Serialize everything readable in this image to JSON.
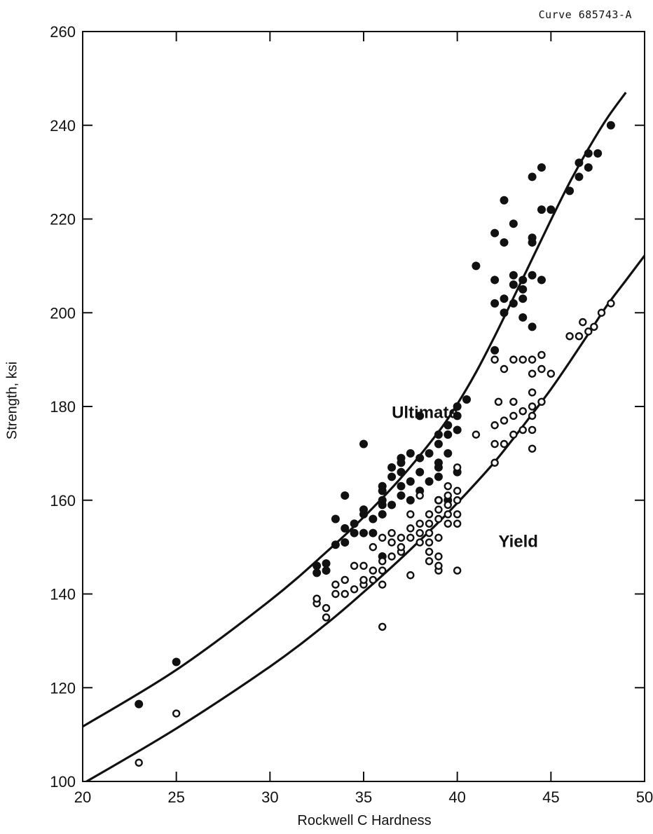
{
  "curve_id": "Curve 685743-A",
  "chart_data": {
    "type": "scatter",
    "title": "",
    "xlabel": "Rockwell C Hardness",
    "ylabel": "Strength, ksi",
    "xlim": [
      20,
      50
    ],
    "ylim": [
      100,
      260
    ],
    "xticks": [
      20,
      25,
      30,
      35,
      40,
      45,
      50
    ],
    "yticks": [
      100,
      120,
      140,
      160,
      180,
      200,
      220,
      240,
      260
    ],
    "grid": false,
    "annotations": [
      {
        "text": "Ultimate",
        "x": 36.5,
        "y": 177.5
      },
      {
        "text": "Yield",
        "x": 42.2,
        "y": 150
      }
    ],
    "series": [
      {
        "name": "Ultimate",
        "marker": "filled-circle",
        "points": [
          [
            23,
            116.5
          ],
          [
            25,
            125.5
          ],
          [
            32.5,
            144.5
          ],
          [
            32.5,
            146
          ],
          [
            33,
            145
          ],
          [
            33,
            146.5
          ],
          [
            33.5,
            150.5
          ],
          [
            33.5,
            156
          ],
          [
            34,
            151
          ],
          [
            34,
            161
          ],
          [
            34,
            154
          ],
          [
            34.5,
            153
          ],
          [
            34.5,
            155
          ],
          [
            35,
            157
          ],
          [
            35,
            158
          ],
          [
            35,
            153
          ],
          [
            35,
            172
          ],
          [
            35.5,
            153
          ],
          [
            35.5,
            156
          ],
          [
            36,
            162
          ],
          [
            36,
            163
          ],
          [
            36,
            157
          ],
          [
            36,
            159
          ],
          [
            36,
            160
          ],
          [
            36,
            148
          ],
          [
            36.5,
            165
          ],
          [
            36.5,
            167
          ],
          [
            36.5,
            159
          ],
          [
            37,
            168
          ],
          [
            37,
            169
          ],
          [
            37,
            166
          ],
          [
            37,
            161
          ],
          [
            37,
            163
          ],
          [
            37.5,
            170
          ],
          [
            37.5,
            164
          ],
          [
            37.5,
            160
          ],
          [
            38,
            178
          ],
          [
            38,
            169
          ],
          [
            38,
            166
          ],
          [
            38,
            162
          ],
          [
            38.5,
            170
          ],
          [
            38.5,
            164
          ],
          [
            39,
            174
          ],
          [
            39,
            172
          ],
          [
            39,
            168
          ],
          [
            39,
            167
          ],
          [
            39,
            165
          ],
          [
            39,
            160
          ],
          [
            39.5,
            176
          ],
          [
            39.5,
            174
          ],
          [
            39.5,
            170
          ],
          [
            39.5,
            160
          ],
          [
            40,
            180
          ],
          [
            40,
            178
          ],
          [
            40,
            175
          ],
          [
            40,
            166
          ],
          [
            40.5,
            181.5
          ],
          [
            41,
            210
          ],
          [
            42,
            192
          ],
          [
            42,
            202
          ],
          [
            42,
            207
          ],
          [
            42,
            217
          ],
          [
            42.5,
            224
          ],
          [
            42.5,
            215
          ],
          [
            42.5,
            203
          ],
          [
            42.5,
            200
          ],
          [
            43,
            219
          ],
          [
            43,
            208
          ],
          [
            43,
            206
          ],
          [
            43,
            202
          ],
          [
            43.5,
            207
          ],
          [
            43.5,
            205
          ],
          [
            43.5,
            203
          ],
          [
            43.5,
            199
          ],
          [
            44,
            229
          ],
          [
            44,
            216
          ],
          [
            44,
            215
          ],
          [
            44,
            208
          ],
          [
            44,
            197
          ],
          [
            44.5,
            231
          ],
          [
            44.5,
            222
          ],
          [
            44.5,
            207
          ],
          [
            45,
            222
          ],
          [
            46,
            226
          ],
          [
            46.5,
            229
          ],
          [
            46.5,
            232
          ],
          [
            47,
            231
          ],
          [
            47,
            234
          ],
          [
            47.5,
            234
          ],
          [
            48.2,
            240
          ]
        ]
      },
      {
        "name": "Yield",
        "marker": "open-circle",
        "points": [
          [
            23,
            104
          ],
          [
            25,
            114.5
          ],
          [
            32.5,
            138
          ],
          [
            32.5,
            139
          ],
          [
            33,
            135
          ],
          [
            33,
            137
          ],
          [
            33.5,
            140
          ],
          [
            33.5,
            142
          ],
          [
            34,
            140
          ],
          [
            34,
            143
          ],
          [
            34.5,
            141
          ],
          [
            34.5,
            146
          ],
          [
            35,
            142
          ],
          [
            35,
            143
          ],
          [
            35,
            146
          ],
          [
            35.5,
            143
          ],
          [
            35.5,
            145
          ],
          [
            35.5,
            150
          ],
          [
            36,
            133
          ],
          [
            36,
            142
          ],
          [
            36,
            145
          ],
          [
            36,
            147
          ],
          [
            36,
            152
          ],
          [
            36.5,
            148
          ],
          [
            36.5,
            151
          ],
          [
            36.5,
            153
          ],
          [
            37,
            149
          ],
          [
            37,
            150
          ],
          [
            37,
            152
          ],
          [
            37.5,
            152
          ],
          [
            37.5,
            154
          ],
          [
            37.5,
            157
          ],
          [
            37.5,
            144
          ],
          [
            38,
            151
          ],
          [
            38,
            153
          ],
          [
            38,
            155
          ],
          [
            38,
            161
          ],
          [
            38.5,
            147
          ],
          [
            38.5,
            149
          ],
          [
            38.5,
            151
          ],
          [
            38.5,
            153
          ],
          [
            38.5,
            155
          ],
          [
            38.5,
            157
          ],
          [
            39,
            145
          ],
          [
            39,
            146
          ],
          [
            39,
            148
          ],
          [
            39,
            152
          ],
          [
            39,
            156
          ],
          [
            39,
            158
          ],
          [
            39,
            160
          ],
          [
            39.5,
            155
          ],
          [
            39.5,
            157
          ],
          [
            39.5,
            159
          ],
          [
            39.5,
            161
          ],
          [
            39.5,
            163
          ],
          [
            40,
            145
          ],
          [
            40,
            155
          ],
          [
            40,
            157
          ],
          [
            40,
            160
          ],
          [
            40,
            162
          ],
          [
            40,
            167
          ],
          [
            41,
            174
          ],
          [
            42,
            168
          ],
          [
            42,
            172
          ],
          [
            42,
            176
          ],
          [
            42,
            190
          ],
          [
            42.2,
            181
          ],
          [
            42.5,
            172
          ],
          [
            42.5,
            177
          ],
          [
            42.5,
            188
          ],
          [
            43,
            174
          ],
          [
            43,
            178
          ],
          [
            43,
            181
          ],
          [
            43,
            190
          ],
          [
            43.5,
            175
          ],
          [
            43.5,
            179
          ],
          [
            43.5,
            190
          ],
          [
            44,
            171
          ],
          [
            44,
            175
          ],
          [
            44,
            178
          ],
          [
            44,
            180
          ],
          [
            44,
            183
          ],
          [
            44,
            187
          ],
          [
            44,
            190
          ],
          [
            44.5,
            181
          ],
          [
            44.5,
            188
          ],
          [
            44.5,
            191
          ],
          [
            45,
            187
          ],
          [
            46,
            195
          ],
          [
            46.5,
            195
          ],
          [
            46.7,
            198
          ],
          [
            47,
            196
          ],
          [
            47.3,
            197
          ],
          [
            47.7,
            200
          ],
          [
            48.2,
            202
          ]
        ]
      }
    ],
    "fit_curves": [
      {
        "name": "Ultimate",
        "x": [
          20,
          25,
          30,
          33,
          35,
          37,
          39,
          40,
          41,
          42,
          43,
          44,
          45,
          46,
          47,
          48,
          49
        ],
        "y": [
          111.7,
          123.8,
          138.6,
          148.9,
          156.4,
          164.8,
          174.6,
          180.5,
          187.3,
          195,
          203.2,
          211.5,
          219.8,
          227.8,
          235,
          241.5,
          247
        ]
      },
      {
        "name": "Yield",
        "x": [
          20,
          25,
          30,
          33,
          35,
          37,
          39,
          40,
          41,
          42,
          43,
          44,
          45,
          46,
          47,
          48,
          49,
          50
        ],
        "y": [
          99.5,
          111.3,
          124.5,
          133.6,
          140.4,
          147.6,
          155.3,
          159.4,
          163.7,
          168.2,
          173.2,
          178.4,
          183.7,
          189.5,
          195.5,
          201.6,
          206.9,
          212.2
        ]
      }
    ]
  }
}
